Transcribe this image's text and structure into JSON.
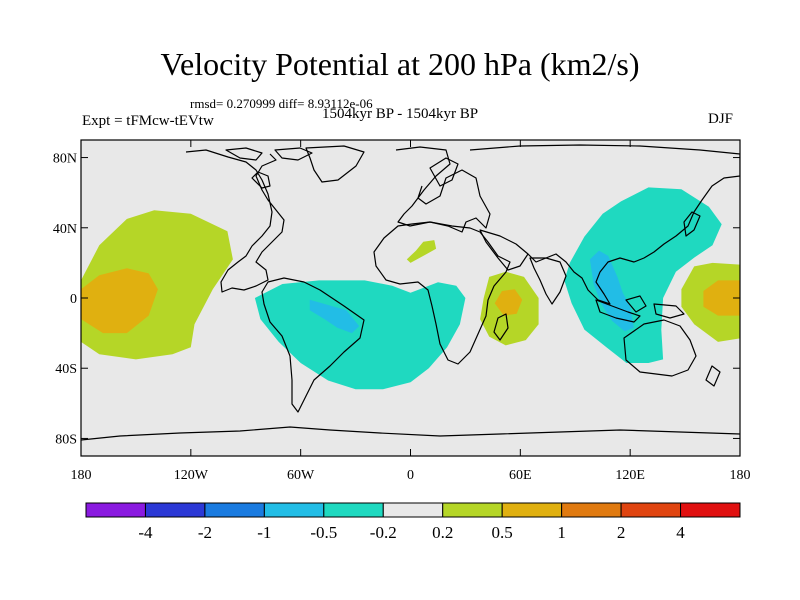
{
  "header": {
    "title": "Velocity Potential at 200 hPa (km2/s)",
    "stats": "rmsd= 0.270999 diff= 8.93112e-06",
    "left_label": "Expt = tFMcw-tEVtw",
    "center_label": "1504kyr BP - 1504kyr BP",
    "right_label": "DJF"
  },
  "chart_data": {
    "type": "heatmap",
    "title": "Velocity Potential at 200 hPa (km2/s)",
    "subtitle": "1504kyr BP - 1504kyr BP",
    "xlabel": "",
    "ylabel": "",
    "xlim": [
      -180,
      180
    ],
    "ylim": [
      -90,
      90
    ],
    "x_ticks": [
      {
        "value": -180,
        "label": "180"
      },
      {
        "value": -120,
        "label": "120W"
      },
      {
        "value": -60,
        "label": "60W"
      },
      {
        "value": 0,
        "label": "0"
      },
      {
        "value": 60,
        "label": "60E"
      },
      {
        "value": 120,
        "label": "120E"
      },
      {
        "value": 180,
        "label": "180"
      }
    ],
    "y_ticks": [
      {
        "value": 80,
        "label": "80N"
      },
      {
        "value": 40,
        "label": "40N"
      },
      {
        "value": 0,
        "label": "0"
      },
      {
        "value": -40,
        "label": "40S"
      },
      {
        "value": -80,
        "label": "80S"
      }
    ],
    "background_color": "#e8e8e8",
    "colorbar": {
      "labels": [
        "-4",
        "-2",
        "-1",
        "-0.5",
        "-0.2",
        "0.2",
        "0.5",
        "1",
        "2",
        "4"
      ],
      "colors": [
        "#8a1ae0",
        "#2b38d6",
        "#1a7be0",
        "#22bde6",
        "#1fd9c0",
        "#e8e8e8",
        "#b5d627",
        "#e0b010",
        "#e07a10",
        "#e04410",
        "#e01010"
      ]
    },
    "regions": [
      {
        "name": "central-pacific-positive",
        "color": "#b5d627",
        "points": [
          [
            -180,
            10
          ],
          [
            -170,
            30
          ],
          [
            -155,
            45
          ],
          [
            -140,
            50
          ],
          [
            -120,
            48
          ],
          [
            -100,
            38
          ],
          [
            -97,
            22
          ],
          [
            -108,
            5
          ],
          [
            -118,
            -15
          ],
          [
            -120,
            -28
          ],
          [
            -130,
            -32
          ],
          [
            -150,
            -35
          ],
          [
            -170,
            -32
          ],
          [
            -180,
            -25
          ]
        ]
      },
      {
        "name": "central-pacific-strong",
        "color": "#e0b010",
        "points": [
          [
            -180,
            5
          ],
          [
            -170,
            13
          ],
          [
            -155,
            17
          ],
          [
            -143,
            14
          ],
          [
            -138,
            5
          ],
          [
            -143,
            -10
          ],
          [
            -155,
            -20
          ],
          [
            -168,
            -20
          ],
          [
            -180,
            -12
          ]
        ]
      },
      {
        "name": "south-america-atlantic-negative",
        "color": "#1fd9c0",
        "points": [
          [
            -85,
            0
          ],
          [
            -70,
            8
          ],
          [
            -50,
            10
          ],
          [
            -25,
            10
          ],
          [
            -10,
            7
          ],
          [
            0,
            3
          ],
          [
            5,
            5
          ],
          [
            15,
            9
          ],
          [
            25,
            7
          ],
          [
            30,
            0
          ],
          [
            27,
            -15
          ],
          [
            20,
            -28
          ],
          [
            10,
            -40
          ],
          [
            0,
            -48
          ],
          [
            -15,
            -52
          ],
          [
            -30,
            -52
          ],
          [
            -45,
            -47
          ],
          [
            -60,
            -37
          ],
          [
            -72,
            -25
          ],
          [
            -82,
            -12
          ]
        ]
      },
      {
        "name": "brazil-minimum",
        "color": "#22bde6",
        "points": [
          [
            -55,
            -1
          ],
          [
            -45,
            -4
          ],
          [
            -35,
            -7
          ],
          [
            -28,
            -16
          ],
          [
            -32,
            -20
          ],
          [
            -40,
            -17
          ],
          [
            -47,
            -12
          ],
          [
            -55,
            -7
          ]
        ]
      },
      {
        "name": "north-africa-positive",
        "color": "#b5d627",
        "points": [
          [
            -2,
            22
          ],
          [
            3,
            27
          ],
          [
            7,
            32
          ],
          [
            13,
            33
          ],
          [
            14,
            28
          ],
          [
            7,
            24
          ],
          [
            0,
            20
          ]
        ]
      },
      {
        "name": "east-africa-indian-positive",
        "color": "#b5d627",
        "points": [
          [
            40,
            0
          ],
          [
            43,
            12
          ],
          [
            52,
            15
          ],
          [
            62,
            12
          ],
          [
            70,
            0
          ],
          [
            70,
            -15
          ],
          [
            63,
            -24
          ],
          [
            52,
            -27
          ],
          [
            43,
            -22
          ],
          [
            38,
            -12
          ]
        ]
      },
      {
        "name": "east-africa-indian-strong",
        "color": "#e0b010",
        "points": [
          [
            46,
            -3
          ],
          [
            50,
            4
          ],
          [
            57,
            5
          ],
          [
            61,
            -1
          ],
          [
            58,
            -9
          ],
          [
            51,
            -10
          ]
        ]
      },
      {
        "name": "asia-pacific-negative",
        "color": "#1fd9c0",
        "points": [
          [
            87,
            20
          ],
          [
            95,
            35
          ],
          [
            105,
            48
          ],
          [
            115,
            55
          ],
          [
            130,
            63
          ],
          [
            148,
            62
          ],
          [
            163,
            52
          ],
          [
            170,
            42
          ],
          [
            165,
            30
          ],
          [
            155,
            23
          ],
          [
            145,
            15
          ],
          [
            138,
            0
          ],
          [
            137,
            -18
          ],
          [
            138,
            -35
          ],
          [
            130,
            -37
          ],
          [
            118,
            -37
          ],
          [
            107,
            -28
          ],
          [
            95,
            -18
          ],
          [
            88,
            -3
          ],
          [
            84,
            10
          ]
        ]
      },
      {
        "name": "asia-pacific-minimum",
        "color": "#22bde6",
        "points": [
          [
            98,
            22
          ],
          [
            103,
            27
          ],
          [
            108,
            24
          ],
          [
            113,
            12
          ],
          [
            116,
            3
          ],
          [
            120,
            -5
          ],
          [
            122,
            -17
          ],
          [
            117,
            -19
          ],
          [
            110,
            -13
          ],
          [
            104,
            -3
          ],
          [
            100,
            8
          ]
        ]
      },
      {
        "name": "west-pacific-positive",
        "color": "#b5d627",
        "points": [
          [
            148,
            5
          ],
          [
            155,
            18
          ],
          [
            165,
            20
          ],
          [
            180,
            19
          ],
          [
            180,
            -23
          ],
          [
            168,
            -25
          ],
          [
            155,
            -15
          ],
          [
            148,
            -5
          ]
        ]
      },
      {
        "name": "west-pacific-strong",
        "color": "#e0b010",
        "points": [
          [
            160,
            4
          ],
          [
            168,
            10
          ],
          [
            180,
            10
          ],
          [
            180,
            -10
          ],
          [
            168,
            -10
          ],
          [
            160,
            -5
          ]
        ]
      }
    ]
  }
}
